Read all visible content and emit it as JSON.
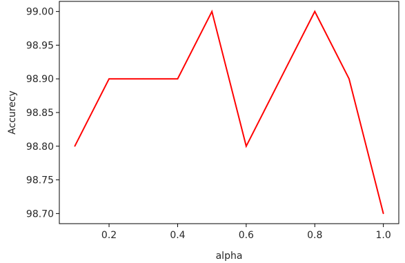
{
  "chart_data": {
    "type": "line",
    "title": "",
    "xlabel": "alpha",
    "ylabel": "Accurecy",
    "x": [
      0.1,
      0.2,
      0.3,
      0.4,
      0.5,
      0.6,
      0.7,
      0.8,
      0.9,
      1.0
    ],
    "series": [
      {
        "values": [
          98.8,
          98.9,
          98.9,
          98.9,
          99.0,
          98.8,
          98.9,
          99.0,
          98.9,
          98.7
        ],
        "color": "#ff0000"
      }
    ],
    "xlim": [
      0.055,
      1.045
    ],
    "ylim": [
      98.685,
      99.015
    ],
    "xticks": [
      0.2,
      0.4,
      0.6,
      0.8,
      1.0
    ],
    "xtick_labels": [
      "0.2",
      "0.4",
      "0.6",
      "0.8",
      "1.0"
    ],
    "yticks": [
      98.7,
      98.75,
      98.8,
      98.85,
      98.9,
      98.95,
      99.0
    ],
    "ytick_labels": [
      "98.70",
      "98.75",
      "98.80",
      "98.85",
      "98.90",
      "98.95",
      "99.00"
    ],
    "grid": false,
    "legend": "none"
  }
}
